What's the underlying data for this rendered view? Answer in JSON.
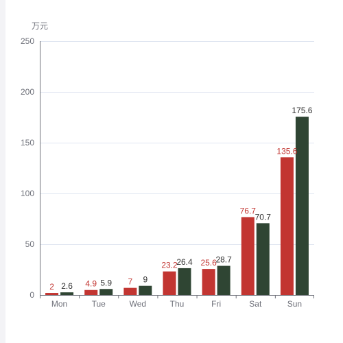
{
  "chart_data": {
    "type": "bar",
    "title": "",
    "xlabel": "",
    "ylabel": "万元",
    "categories": [
      "Mon",
      "Tue",
      "Wed",
      "Thu",
      "Fri",
      "Sat",
      "Sun"
    ],
    "ylim": [
      0,
      250
    ],
    "yticks": [
      0,
      50,
      100,
      150,
      200,
      250
    ],
    "grid": true,
    "series": [
      {
        "values": [
          2,
          4.9,
          7,
          23.2,
          25.6,
          76.7,
          135.6
        ],
        "color": "#c23531",
        "label_color": "#c23531"
      },
      {
        "values": [
          2.6,
          5.9,
          9,
          26.4,
          28.7,
          70.7,
          175.6
        ],
        "color": "#2f4533",
        "label_color": "#333333"
      }
    ]
  }
}
